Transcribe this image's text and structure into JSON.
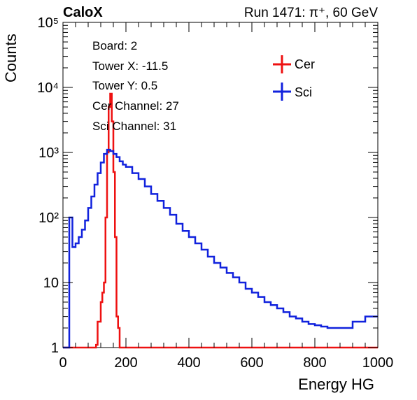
{
  "header": {
    "brand": "CaloX",
    "run_info": "Run 1471:   π⁺, 60 GeV"
  },
  "info_box": {
    "lines": [
      "Board: 2",
      "Tower X: -11.5",
      "Tower Y: 0.5",
      "Cer Channel: 27",
      "Sci Channel: 31"
    ]
  },
  "chart_data": {
    "type": "line",
    "xlabel": "Energy HG",
    "ylabel": "Counts",
    "xlim": [
      0,
      1000
    ],
    "ylim": [
      1,
      100000
    ],
    "y_log": true,
    "x_ticks": [
      0,
      200,
      400,
      600,
      800,
      1000
    ],
    "x_tick_labels": [
      "0",
      "200",
      "400",
      "600",
      "800",
      "1000"
    ],
    "y_ticks": [
      1,
      10,
      100,
      1000,
      10000,
      100000
    ],
    "y_tick_labels": [
      "1",
      "10",
      "10²",
      "10³",
      "10⁴",
      "10⁵"
    ],
    "grid": false,
    "legend_position": "top-right",
    "series": [
      {
        "name": "Cer",
        "color": "#ee1111",
        "x": [
          0,
          20,
          25,
          30,
          35,
          40,
          45,
          50,
          55,
          60,
          65,
          70,
          75,
          80,
          85,
          90,
          95,
          100,
          105,
          110,
          115,
          120,
          125,
          130,
          135,
          140,
          145,
          150,
          155,
          160,
          165,
          170,
          175,
          180,
          185,
          190,
          195,
          200,
          1000
        ],
        "y": [
          1,
          1,
          1,
          1,
          1,
          1,
          1,
          1,
          1,
          1,
          1,
          1,
          1,
          1,
          1,
          1,
          1,
          1,
          1.1,
          2.5,
          2.5,
          5,
          7,
          10,
          100,
          1000,
          5000,
          8000,
          3000,
          500,
          50,
          3,
          2,
          1,
          1,
          1,
          1,
          1,
          1
        ]
      },
      {
        "name": "Sci",
        "color": "#1122dd",
        "x": [
          0,
          10,
          20,
          30,
          40,
          50,
          60,
          70,
          80,
          90,
          100,
          110,
          120,
          130,
          140,
          150,
          160,
          170,
          180,
          190,
          200,
          220,
          240,
          260,
          280,
          300,
          320,
          340,
          360,
          380,
          400,
          420,
          440,
          460,
          480,
          500,
          520,
          540,
          560,
          580,
          600,
          620,
          640,
          660,
          680,
          700,
          720,
          740,
          760,
          780,
          800,
          820,
          840,
          860,
          880,
          900,
          920,
          940,
          960,
          980,
          1000
        ],
        "y": [
          1,
          1,
          100,
          35,
          40,
          50,
          65,
          90,
          140,
          210,
          320,
          480,
          700,
          950,
          1100,
          1050,
          950,
          850,
          730,
          650,
          600,
          480,
          390,
          300,
          230,
          180,
          140,
          110,
          80,
          62,
          50,
          40,
          32,
          25,
          20,
          17,
          14,
          12,
          10,
          8,
          7,
          6,
          5,
          4.5,
          4,
          3.5,
          3,
          2.8,
          2.5,
          2.3,
          2.2,
          2.1,
          2,
          2,
          2,
          2,
          2.5,
          2.5,
          3,
          3,
          3
        ]
      }
    ]
  }
}
